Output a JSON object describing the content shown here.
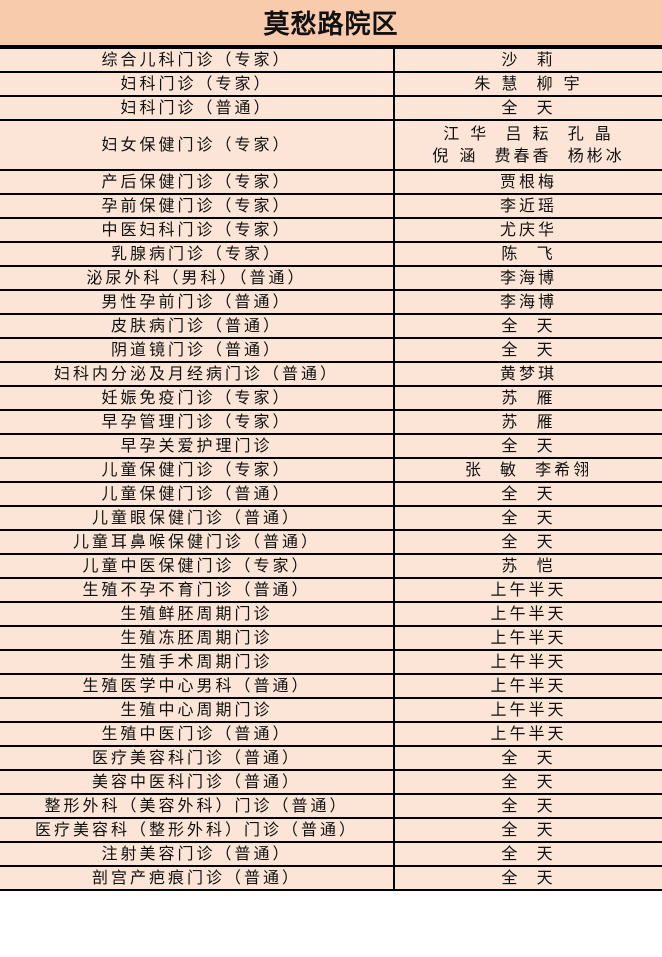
{
  "title": "莫愁路院区",
  "colors": {
    "header_bg": "#f8cbad",
    "row_bg": "#fce4d6",
    "border": "#000000"
  },
  "rows": [
    {
      "clinic": "综合儿科门诊（专家）",
      "doctor": [
        "沙  莉"
      ]
    },
    {
      "clinic": "妇科门诊（专家）",
      "doctor": [
        "朱 慧  柳 宇"
      ]
    },
    {
      "clinic": "妇科门诊（普通）",
      "doctor": [
        "全  天"
      ]
    },
    {
      "clinic": "妇女保健门诊（专家）",
      "doctor": [
        "江 华  吕 耘  孔 晶",
        "倪 涵  费春香  杨彬冰"
      ]
    },
    {
      "clinic": "产后保健门诊（专家）",
      "doctor": [
        "贾根梅"
      ]
    },
    {
      "clinic": "孕前保健门诊（专家）",
      "doctor": [
        "李近瑶"
      ]
    },
    {
      "clinic": "中医妇科门诊（专家）",
      "doctor": [
        "尤庆华"
      ]
    },
    {
      "clinic": "乳腺病门诊（专家）",
      "doctor": [
        "陈  飞"
      ]
    },
    {
      "clinic": "泌尿外科（男科）（普通）",
      "doctor": [
        "李海博"
      ]
    },
    {
      "clinic": "男性孕前门诊（普通）",
      "doctor": [
        "李海博"
      ]
    },
    {
      "clinic": "皮肤病门诊（普通）",
      "doctor": [
        "全  天"
      ]
    },
    {
      "clinic": "阴道镜门诊（普通）",
      "doctor": [
        "全  天"
      ]
    },
    {
      "clinic": "妇科内分泌及月经病门诊（普通）",
      "doctor": [
        "黄梦琪"
      ]
    },
    {
      "clinic": "妊娠免疫门诊（专家）",
      "doctor": [
        "苏  雁"
      ]
    },
    {
      "clinic": "早孕管理门诊（专家）",
      "doctor": [
        "苏  雁"
      ]
    },
    {
      "clinic": "早孕关爱护理门诊",
      "doctor": [
        "全  天"
      ]
    },
    {
      "clinic": "儿童保健门诊（专家）",
      "doctor": [
        "张  敏  李希翎"
      ]
    },
    {
      "clinic": "儿童保健门诊（普通）",
      "doctor": [
        "全  天"
      ]
    },
    {
      "clinic": "儿童眼保健门诊（普通）",
      "doctor": [
        "全  天"
      ]
    },
    {
      "clinic": "儿童耳鼻喉保健门诊（普通）",
      "doctor": [
        "全  天"
      ]
    },
    {
      "clinic": "儿童中医保健门诊（专家）",
      "doctor": [
        "苏  恺"
      ]
    },
    {
      "clinic": "生殖不孕不育门诊（普通）",
      "doctor": [
        "上午半天"
      ]
    },
    {
      "clinic": "生殖鲜胚周期门诊",
      "doctor": [
        "上午半天"
      ]
    },
    {
      "clinic": "生殖冻胚周期门诊",
      "doctor": [
        "上午半天"
      ]
    },
    {
      "clinic": "生殖手术周期门诊",
      "doctor": [
        "上午半天"
      ]
    },
    {
      "clinic": "生殖医学中心男科（普通）",
      "doctor": [
        "上午半天"
      ]
    },
    {
      "clinic": "生殖中心周期门诊",
      "doctor": [
        "上午半天"
      ]
    },
    {
      "clinic": "生殖中医门诊（普通）",
      "doctor": [
        "上午半天"
      ]
    },
    {
      "clinic": "医疗美容科门诊（普通）",
      "doctor": [
        "全  天"
      ]
    },
    {
      "clinic": "美容中医科门诊（普通）",
      "doctor": [
        "全  天"
      ]
    },
    {
      "clinic": "整形外科（美容外科）门诊（普通）",
      "doctor": [
        "全  天"
      ]
    },
    {
      "clinic": "医疗美容科（整形外科）门诊（普通）",
      "doctor": [
        "全  天"
      ]
    },
    {
      "clinic": "注射美容门诊（普通）",
      "doctor": [
        "全  天"
      ]
    },
    {
      "clinic": "剖宫产疤痕门诊（普通）",
      "doctor": [
        "全  天"
      ]
    }
  ]
}
